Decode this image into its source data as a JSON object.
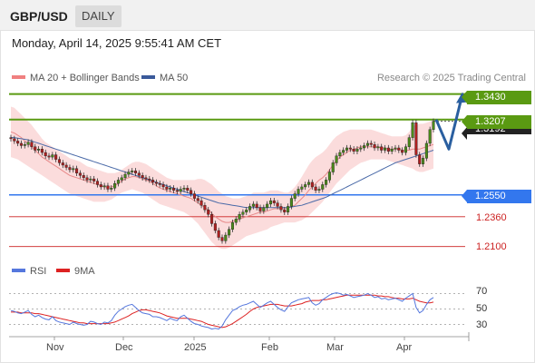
{
  "header": {
    "symbol": "GBP/USD",
    "timeframe": "DAILY"
  },
  "timestamp": "Monday, April 14, 2025 9:55:41 AM CET",
  "legend": {
    "ma20_label": "MA 20 + Bollinger Bands",
    "ma50_label": "MA 50",
    "ma20_color": "#f08080",
    "ma50_color": "#3a5a9a"
  },
  "credit": "Research © 2025 Trading Central",
  "levels": {
    "r2": "1.3430",
    "r1": "1.3207",
    "last": "1.3192",
    "pivot": "1.2550",
    "s1": "1.2360",
    "s2": "1.2100"
  },
  "colors": {
    "resistance": "#5a9a12",
    "pivot": "#3377ee",
    "support": "#cc2222",
    "last_price": "#222222",
    "up_candle": "#4a8a1a",
    "down_candle": "#b02020",
    "forecast_arrow": "#2a5fa0",
    "bollinger_fill": "#fbd8d8",
    "rsi_line": "#5577dd",
    "rsi_ma_line": "#dd2222"
  },
  "rsi_legend": {
    "rsi_label": "RSI",
    "ma_label": "9MA"
  },
  "rsi_levels": [
    "70",
    "50",
    "30"
  ],
  "months": [
    "Nov",
    "Dec",
    "2025",
    "Feb",
    "Mar",
    "Apr"
  ],
  "chart_data": {
    "type": "candlestick",
    "ylim": [
      1.205,
      1.349
    ],
    "forecast_path": [
      1.3207,
      1.295,
      1.343
    ],
    "close": [
      1.304,
      1.302,
      1.3,
      1.298,
      1.299,
      1.301,
      1.297,
      1.294,
      1.295,
      1.292,
      1.289,
      1.288,
      1.29,
      1.286,
      1.283,
      1.281,
      1.279,
      1.277,
      1.278,
      1.274,
      1.272,
      1.27,
      1.268,
      1.269,
      1.267,
      1.264,
      1.262,
      1.263,
      1.26,
      1.261,
      1.265,
      1.268,
      1.27,
      1.273,
      1.275,
      1.276,
      1.274,
      1.272,
      1.27,
      1.269,
      1.268,
      1.266,
      1.265,
      1.264,
      1.262,
      1.26,
      1.261,
      1.259,
      1.258,
      1.26,
      1.261,
      1.259,
      1.256,
      1.252,
      1.25,
      1.246,
      1.242,
      1.238,
      1.23,
      1.224,
      1.218,
      1.215,
      1.22,
      1.225,
      1.231,
      1.234,
      1.238,
      1.24,
      1.242,
      1.245,
      1.247,
      1.244,
      1.241,
      1.244,
      1.247,
      1.25,
      1.248,
      1.245,
      1.242,
      1.24,
      1.245,
      1.252,
      1.256,
      1.26,
      1.262,
      1.264,
      1.266,
      1.262,
      1.259,
      1.26,
      1.264,
      1.268,
      1.275,
      1.283,
      1.289,
      1.292,
      1.294,
      1.296,
      1.295,
      1.293,
      1.295,
      1.296,
      1.298,
      1.3,
      1.299,
      1.296,
      1.297,
      1.294,
      1.296,
      1.293,
      1.295,
      1.296,
      1.294,
      1.292,
      1.297,
      1.305,
      1.318,
      1.29,
      1.282,
      1.287,
      1.3,
      1.312,
      1.3192
    ],
    "bb_upper": [
      1.332,
      1.331,
      1.328,
      1.325,
      1.322,
      1.319,
      1.316,
      1.312,
      1.308,
      1.304,
      1.301,
      1.299,
      1.297,
      1.295,
      1.293,
      1.291,
      1.289,
      1.287,
      1.286,
      1.285,
      1.284,
      1.282,
      1.28,
      1.279,
      1.278,
      1.277,
      1.276,
      1.275,
      1.274,
      1.274,
      1.274,
      1.275,
      1.277,
      1.279,
      1.281,
      1.283,
      1.284,
      1.284,
      1.283,
      1.282,
      1.28,
      1.278,
      1.276,
      1.274,
      1.272,
      1.27,
      1.269,
      1.268,
      1.268,
      1.268,
      1.268,
      1.268,
      1.268,
      1.268,
      1.269,
      1.269,
      1.268,
      1.266,
      1.264,
      1.261,
      1.258,
      1.256,
      1.254,
      1.253,
      1.252,
      1.252,
      1.252,
      1.253,
      1.254,
      1.255,
      1.257,
      1.257,
      1.257,
      1.257,
      1.258,
      1.259,
      1.259,
      1.259,
      1.258,
      1.257,
      1.257,
      1.259,
      1.262,
      1.266,
      1.271,
      1.276,
      1.281,
      1.285,
      1.288,
      1.29,
      1.292,
      1.295,
      1.299,
      1.303,
      1.306,
      1.308,
      1.31,
      1.311,
      1.312,
      1.312,
      1.312,
      1.312,
      1.312,
      1.312,
      1.312,
      1.311,
      1.31,
      1.309,
      1.308,
      1.307,
      1.306,
      1.306,
      1.306,
      1.306,
      1.307,
      1.31,
      1.315,
      1.316,
      1.317,
      1.317,
      1.318,
      1.319,
      1.32
    ],
    "bb_lower": [
      1.288,
      1.287,
      1.286,
      1.284,
      1.282,
      1.28,
      1.278,
      1.276,
      1.274,
      1.272,
      1.27,
      1.268,
      1.266,
      1.264,
      1.262,
      1.26,
      1.258,
      1.256,
      1.255,
      1.254,
      1.253,
      1.252,
      1.251,
      1.25,
      1.249,
      1.249,
      1.249,
      1.249,
      1.25,
      1.251,
      1.253,
      1.255,
      1.257,
      1.258,
      1.259,
      1.26,
      1.259,
      1.258,
      1.257,
      1.255,
      1.253,
      1.251,
      1.249,
      1.247,
      1.246,
      1.245,
      1.244,
      1.243,
      1.242,
      1.241,
      1.24,
      1.238,
      1.236,
      1.233,
      1.23,
      1.226,
      1.222,
      1.218,
      1.214,
      1.211,
      1.209,
      1.208,
      1.208,
      1.209,
      1.211,
      1.213,
      1.215,
      1.217,
      1.219,
      1.22,
      1.221,
      1.222,
      1.223,
      1.224,
      1.225,
      1.227,
      1.228,
      1.229,
      1.23,
      1.231,
      1.231,
      1.231,
      1.231,
      1.232,
      1.233,
      1.235,
      1.237,
      1.24,
      1.243,
      1.246,
      1.249,
      1.253,
      1.257,
      1.261,
      1.265,
      1.268,
      1.271,
      1.274,
      1.277,
      1.279,
      1.281,
      1.283,
      1.284,
      1.285,
      1.286,
      1.286,
      1.286,
      1.286,
      1.286,
      1.285,
      1.284,
      1.283,
      1.282,
      1.281,
      1.28,
      1.279,
      1.278,
      1.276,
      1.275,
      1.275,
      1.276,
      1.277,
      1.278
    ],
    "ma20": [
      1.31,
      1.309,
      1.307,
      1.305,
      1.302,
      1.3,
      1.297,
      1.294,
      1.291,
      1.288,
      1.286,
      1.284,
      1.282,
      1.28,
      1.278,
      1.276,
      1.274,
      1.272,
      1.271,
      1.27,
      1.269,
      1.268,
      1.267,
      1.266,
      1.265,
      1.264,
      1.263,
      1.262,
      1.262,
      1.262,
      1.263,
      1.265,
      1.267,
      1.269,
      1.27,
      1.271,
      1.271,
      1.27,
      1.269,
      1.268,
      1.267,
      1.265,
      1.263,
      1.261,
      1.26,
      1.259,
      1.258,
      1.257,
      1.256,
      1.255,
      1.254,
      1.253,
      1.252,
      1.25,
      1.248,
      1.246,
      1.244,
      1.242,
      1.239,
      1.236,
      1.234,
      1.232,
      1.231,
      1.231,
      1.232,
      1.233,
      1.234,
      1.235,
      1.236,
      1.237,
      1.238,
      1.239,
      1.24,
      1.24,
      1.241,
      1.242,
      1.243,
      1.243,
      1.243,
      1.243,
      1.244,
      1.245,
      1.246,
      1.249,
      1.252,
      1.255,
      1.259,
      1.262,
      1.265,
      1.268,
      1.27,
      1.273,
      1.277,
      1.281,
      1.285,
      1.288,
      1.29,
      1.292,
      1.294,
      1.295,
      1.296,
      1.297,
      1.297,
      1.297,
      1.297,
      1.297,
      1.297,
      1.296,
      1.296,
      1.295,
      1.295,
      1.295,
      1.295,
      1.294,
      1.294,
      1.294,
      1.295,
      1.295,
      1.295,
      1.296,
      1.297,
      1.298,
      1.299
    ],
    "ma50": [
      1.305,
      1.305,
      1.3045,
      1.304,
      1.3035,
      1.303,
      1.302,
      1.301,
      1.3,
      1.299,
      1.298,
      1.297,
      1.296,
      1.295,
      1.294,
      1.293,
      1.292,
      1.291,
      1.29,
      1.289,
      1.288,
      1.287,
      1.286,
      1.285,
      1.284,
      1.283,
      1.282,
      1.281,
      1.28,
      1.279,
      1.278,
      1.277,
      1.276,
      1.275,
      1.274,
      1.273,
      1.272,
      1.271,
      1.27,
      1.269,
      1.268,
      1.267,
      1.266,
      1.265,
      1.264,
      1.263,
      1.262,
      1.261,
      1.26,
      1.259,
      1.258,
      1.257,
      1.256,
      1.255,
      1.254,
      1.253,
      1.252,
      1.251,
      1.25,
      1.249,
      1.248,
      1.2475,
      1.247,
      1.2465,
      1.246,
      1.2455,
      1.245,
      1.2445,
      1.244,
      1.244,
      1.244,
      1.244,
      1.244,
      1.244,
      1.244,
      1.244,
      1.244,
      1.244,
      1.244,
      1.244,
      1.244,
      1.2445,
      1.245,
      1.2455,
      1.246,
      1.247,
      1.248,
      1.249,
      1.25,
      1.251,
      1.252,
      1.253,
      1.2545,
      1.256,
      1.2575,
      1.259,
      1.2605,
      1.262,
      1.2635,
      1.265,
      1.2665,
      1.268,
      1.2695,
      1.271,
      1.2725,
      1.274,
      1.2755,
      1.277,
      1.2785,
      1.28,
      1.2815,
      1.283,
      1.284,
      1.285,
      1.286,
      1.287,
      1.288,
      1.289,
      1.29,
      1.291,
      1.292,
      1.293,
      1.294
    ],
    "rsi_ylim": [
      20,
      80
    ],
    "rsi": [
      48,
      47,
      45,
      44,
      46,
      48,
      43,
      40,
      42,
      39,
      37,
      36,
      40,
      35,
      33,
      32,
      31,
      30,
      33,
      31,
      30,
      29,
      30,
      34,
      33,
      31,
      30,
      33,
      32,
      35,
      42,
      47,
      50,
      53,
      55,
      56,
      52,
      48,
      45,
      44,
      43,
      40,
      40,
      39,
      37,
      35,
      38,
      36,
      35,
      40,
      42,
      38,
      34,
      31,
      30,
      28,
      27,
      26,
      24,
      25,
      24,
      28,
      36,
      42,
      48,
      50,
      53,
      55,
      56,
      58,
      60,
      56,
      52,
      55,
      58,
      60,
      56,
      52,
      49,
      47,
      53,
      58,
      60,
      62,
      63,
      64,
      65,
      58,
      55,
      57,
      62,
      65,
      68,
      70,
      71,
      70,
      68,
      69,
      67,
      65,
      66,
      67,
      68,
      70,
      68,
      65,
      66,
      63,
      64,
      62,
      63,
      64,
      62,
      60,
      64,
      67,
      70,
      52,
      45,
      48,
      56,
      62,
      65
    ],
    "rsi_ma": [
      46,
      46,
      46,
      45,
      45,
      45,
      45,
      44,
      44,
      43,
      42,
      41,
      40,
      39,
      38,
      37,
      36,
      35,
      34,
      33,
      32,
      32,
      31,
      31,
      31,
      31,
      31,
      31,
      31,
      32,
      33,
      35,
      37,
      39,
      41,
      44,
      46,
      48,
      49,
      49,
      48,
      47,
      46,
      45,
      43,
      41,
      40,
      39,
      38,
      38,
      38,
      38,
      37,
      36,
      35,
      34,
      32,
      30,
      29,
      28,
      27,
      26,
      27,
      29,
      31,
      34,
      37,
      40,
      43,
      47,
      50,
      52,
      53,
      54,
      55,
      56,
      56,
      56,
      55,
      54,
      54,
      54,
      55,
      56,
      57,
      59,
      60,
      61,
      61,
      61,
      62,
      62,
      63,
      64,
      65,
      66,
      67,
      68,
      68,
      68,
      68,
      68,
      68,
      68,
      68,
      68,
      67,
      67,
      66,
      66,
      65,
      64,
      64,
      63,
      63,
      63,
      64,
      62,
      60,
      59,
      58,
      58,
      59
    ]
  }
}
